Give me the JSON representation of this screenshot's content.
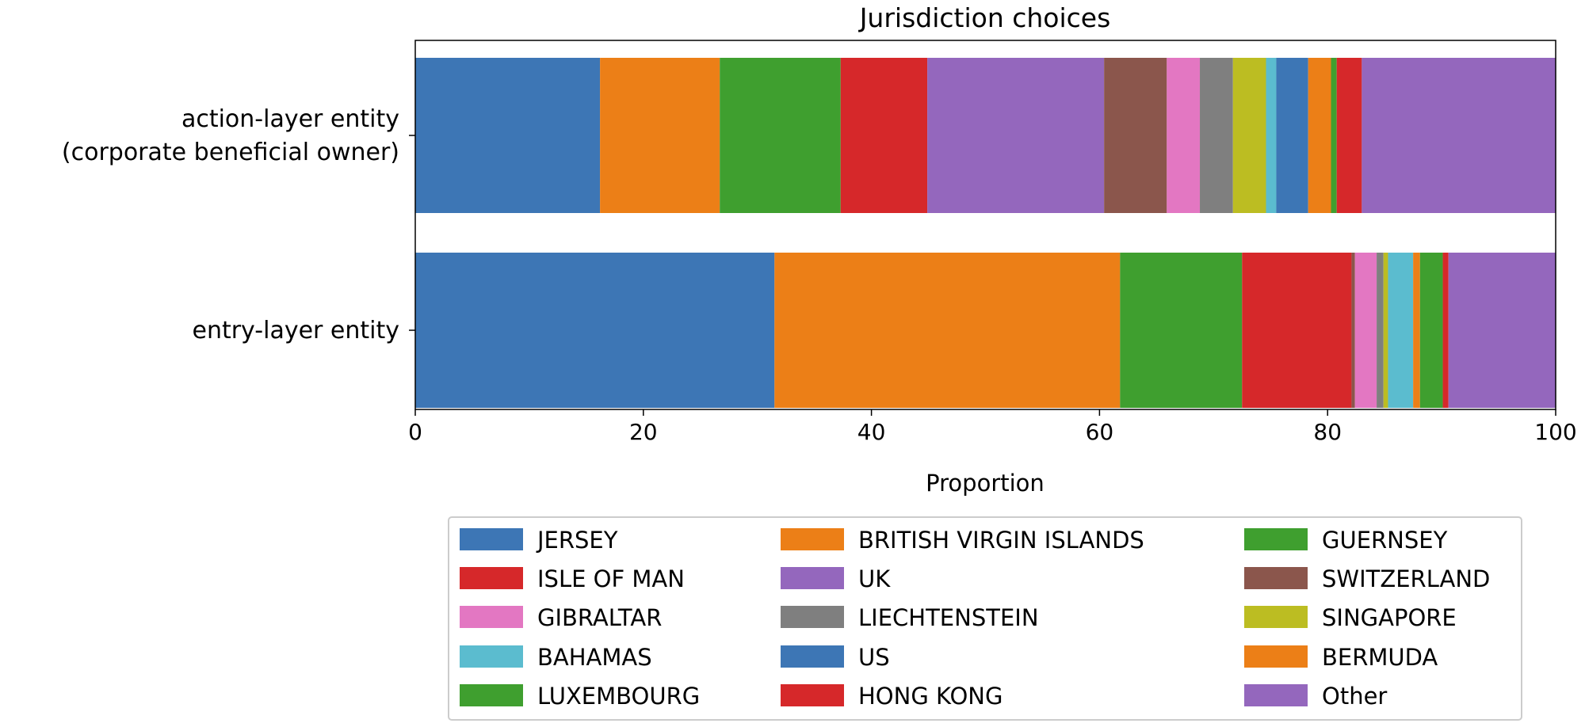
{
  "chart_data": {
    "type": "bar",
    "orientation": "horizontal",
    "stacked": true,
    "title": "Jurisdiction choices",
    "xlabel": "Proportion",
    "ylabel": "",
    "xlim": [
      0,
      100
    ],
    "xticks": [
      0,
      20,
      40,
      60,
      80,
      100
    ],
    "grid": false,
    "legend_position": "bottom",
    "categories": [
      "action-layer entity\n(corporate beneficial owner)",
      "entry-layer entity"
    ],
    "series": [
      {
        "name": "JERSEY",
        "color": "#3d76b5",
        "values": [
          16.2,
          31.5
        ]
      },
      {
        "name": "BRITISH VIRGIN ISLANDS",
        "color": "#ec7f17",
        "values": [
          10.5,
          30.3
        ]
      },
      {
        "name": "GUERNSEY",
        "color": "#3f9f2f",
        "values": [
          10.6,
          10.7
        ]
      },
      {
        "name": "ISLE OF MAN",
        "color": "#d6282a",
        "values": [
          7.6,
          9.6
        ]
      },
      {
        "name": "UK",
        "color": "#9467bd",
        "values": [
          15.5,
          0.0
        ]
      },
      {
        "name": "SWITZERLAND",
        "color": "#8b564c",
        "values": [
          5.5,
          0.3
        ]
      },
      {
        "name": "GIBRALTAR",
        "color": "#e377c2",
        "values": [
          2.9,
          1.9
        ]
      },
      {
        "name": "LIECHTENSTEIN",
        "color": "#7f7f7f",
        "values": [
          2.9,
          0.6
        ]
      },
      {
        "name": "SINGAPORE",
        "color": "#bcbd22",
        "values": [
          2.9,
          0.4
        ]
      },
      {
        "name": "BAHAMAS",
        "color": "#5bbccf",
        "values": [
          0.9,
          2.2
        ]
      },
      {
        "name": "US",
        "color": "#3d76b5",
        "values": [
          2.8,
          0.0
        ]
      },
      {
        "name": "BERMUDA",
        "color": "#ec7f17",
        "values": [
          2.0,
          0.6
        ]
      },
      {
        "name": "LUXEMBOURG",
        "color": "#3f9f2f",
        "values": [
          0.5,
          2.0
        ]
      },
      {
        "name": "HONG KONG",
        "color": "#d6282a",
        "values": [
          2.2,
          0.5
        ]
      },
      {
        "name": "Other",
        "color": "#9467bd",
        "values": [
          17.0,
          9.4
        ]
      }
    ]
  }
}
